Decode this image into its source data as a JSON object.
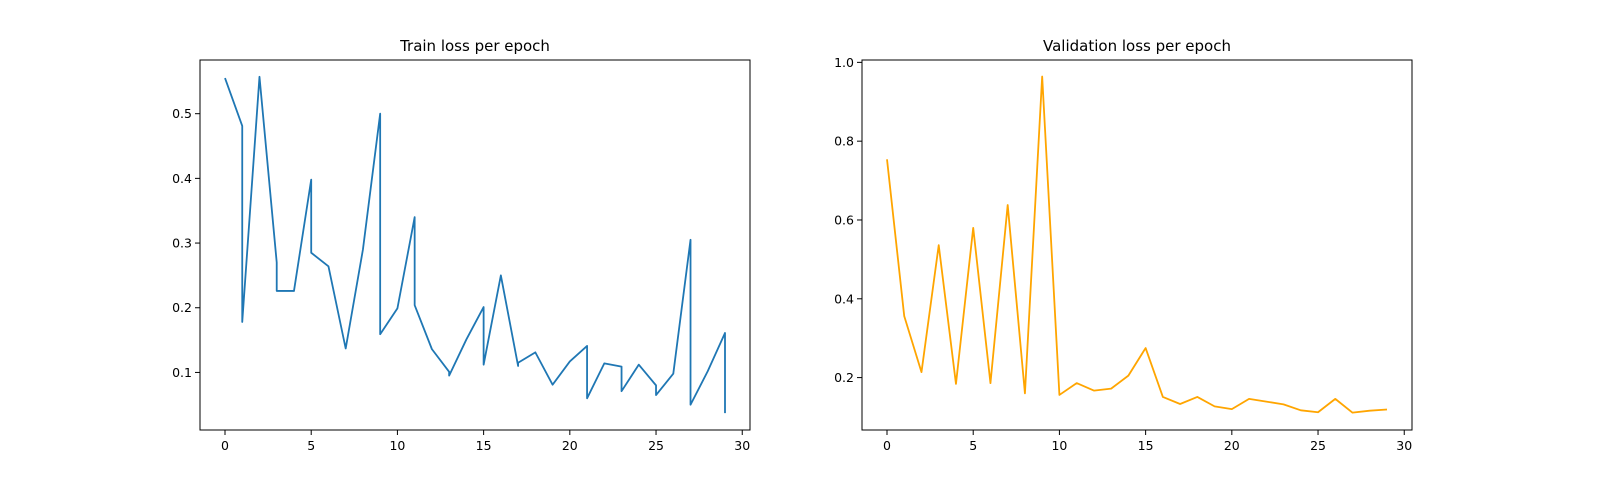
{
  "chart_data": [
    {
      "type": "line",
      "title": "Train loss per epoch",
      "xlabel": "",
      "ylabel": "",
      "xlim": [
        -1.45,
        30.45
      ],
      "ylim": [
        0.011,
        0.583
      ],
      "xticks": [
        0,
        5,
        10,
        15,
        20,
        25,
        30
      ],
      "yticks": [
        0.1,
        0.2,
        0.3,
        0.4,
        0.5
      ],
      "xtick_labels": [
        "0",
        "5",
        "10",
        "15",
        "20",
        "25",
        "30"
      ],
      "ytick_labels": [
        "0.1",
        "0.2",
        "0.3",
        "0.4",
        "0.5"
      ],
      "grid": false,
      "color": "#1f77b4",
      "x": [
        0,
        1,
        1,
        2,
        3,
        3,
        4,
        5,
        5,
        6,
        7,
        8,
        9,
        9,
        10,
        11,
        11,
        12,
        13,
        13,
        14,
        15,
        15,
        16,
        17,
        17,
        18,
        19,
        20,
        21,
        21,
        22,
        23,
        23,
        24,
        25,
        25,
        26,
        27,
        27,
        28,
        29,
        29
      ],
      "y": [
        0.555,
        0.481,
        0.178,
        0.557,
        0.27,
        0.226,
        0.226,
        0.398,
        0.285,
        0.264,
        0.137,
        0.29,
        0.5,
        0.159,
        0.199,
        0.34,
        0.204,
        0.136,
        0.101,
        0.095,
        0.151,
        0.201,
        0.112,
        0.25,
        0.11,
        0.115,
        0.131,
        0.081,
        0.117,
        0.141,
        0.06,
        0.114,
        0.109,
        0.071,
        0.112,
        0.08,
        0.065,
        0.098,
        0.305,
        0.05,
        0.102,
        0.161,
        0.037
      ]
    },
    {
      "type": "line",
      "title": "Validation loss per epoch",
      "xlabel": "",
      "ylabel": "",
      "xlim": [
        -1.45,
        30.45
      ],
      "ylim": [
        0.067,
        1.006
      ],
      "xticks": [
        0,
        5,
        10,
        15,
        20,
        25,
        30
      ],
      "yticks": [
        0.2,
        0.4,
        0.6,
        0.8,
        1.0
      ],
      "xtick_labels": [
        "0",
        "5",
        "10",
        "15",
        "20",
        "25",
        "30"
      ],
      "ytick_labels": [
        "0.2",
        "0.4",
        "0.6",
        "0.8",
        "1.0"
      ],
      "grid": false,
      "color": "#ffa500",
      "x": [
        0,
        1,
        2,
        3,
        4,
        5,
        6,
        7,
        8,
        9,
        10,
        11,
        12,
        13,
        14,
        15,
        16,
        17,
        18,
        19,
        20,
        21,
        22,
        23,
        24,
        25,
        26,
        27,
        28,
        29
      ],
      "y": [
        0.754,
        0.356,
        0.214,
        0.536,
        0.184,
        0.58,
        0.186,
        0.638,
        0.16,
        0.964,
        0.156,
        0.186,
        0.167,
        0.172,
        0.205,
        0.275,
        0.151,
        0.133,
        0.151,
        0.127,
        0.12,
        0.146,
        0.139,
        0.132,
        0.117,
        0.112,
        0.146,
        0.111,
        0.116,
        0.119
      ]
    }
  ]
}
